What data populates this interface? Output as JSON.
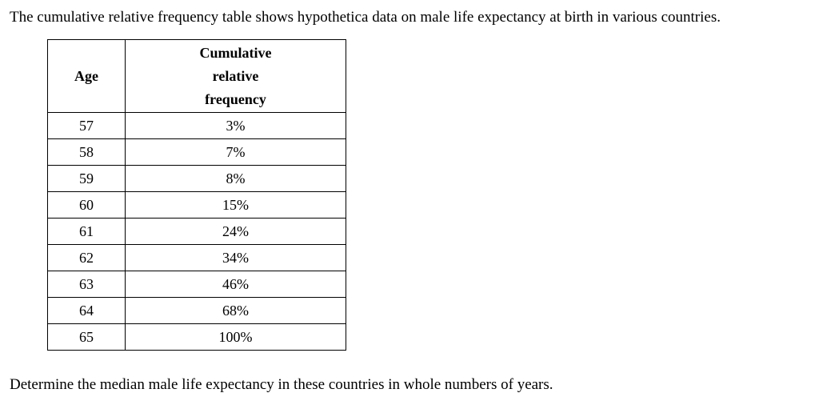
{
  "intro": "The cumulative relative frequency table shows hypothetica data on male life expectancy at birth in various countries.",
  "table": {
    "headers": {
      "age": "Age",
      "crf_line1": "Cumulative",
      "crf_line2": "relative",
      "crf_line3": "frequency"
    },
    "rows": [
      {
        "age": "57",
        "crf": "3%"
      },
      {
        "age": "58",
        "crf": "7%"
      },
      {
        "age": "59",
        "crf": "8%"
      },
      {
        "age": "60",
        "crf": "15%"
      },
      {
        "age": "61",
        "crf": "24%"
      },
      {
        "age": "62",
        "crf": "34%"
      },
      {
        "age": "63",
        "crf": "46%"
      },
      {
        "age": "64",
        "crf": "68%"
      },
      {
        "age": "65",
        "crf": "100%"
      }
    ]
  },
  "question": "Determine the median male life expectancy in these countries in whole numbers of years."
}
